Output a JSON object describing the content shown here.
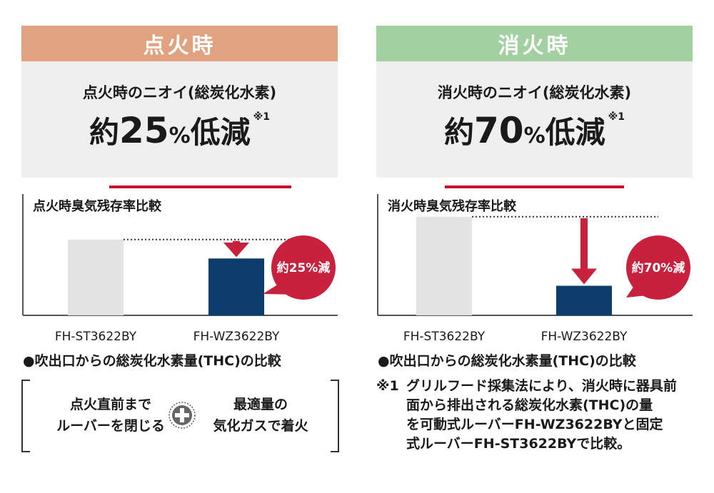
{
  "left": {
    "header": "点火時",
    "summary": {
      "title": "点火時のニオイ(総炭化水素)",
      "prefix": "約",
      "number": "25",
      "percent": "%",
      "suffix": "低減",
      "note": "※1"
    },
    "chart_title": "点火時臭気残存率比較",
    "badge": "約25%減",
    "caption": "●吹出口からの総炭化水素量(THC)の比較"
  },
  "right": {
    "header": "消火時",
    "summary": {
      "title": "消火時のニオイ(総炭化水素)",
      "prefix": "約",
      "number": "70",
      "percent": "%",
      "suffix": "低減",
      "note": "※1"
    },
    "chart_title": "消火時臭気残存率比較",
    "badge": "約70%減",
    "caption": "●吹出口からの総炭化水素量(THC)の比較"
  },
  "method": {
    "step1": [
      "点火直前まで",
      "ルーバーを閉じる"
    ],
    "step2": [
      "最適量の",
      "気化ガスで着火"
    ],
    "plus_icon": "plus-icon"
  },
  "footnote": {
    "mark": "※1",
    "lines": [
      "グリルフード採集法により、消火時に器具前",
      "面から排出される総炭化水素(THC)の量",
      "を可動式ルーバーFH-WZ3622BYと固定",
      "式ルーバーFH-ST3622BYで比較。"
    ]
  },
  "colors": {
    "ignition_header": "#e0a27f",
    "extinction_header": "#a3d0a0",
    "summary_bg": "#efefef",
    "accent_red": "#c8102e",
    "fixed_bar": "#e3e3e3",
    "movable_bar": "#0d3d6b",
    "badge_red": "#c8213e"
  },
  "chart_data": [
    {
      "type": "bar",
      "title": "点火時臭気残存率比較",
      "categories": [
        "FH-ST3622BY",
        "FH-WZ3622BY"
      ],
      "values": [
        100,
        75
      ],
      "ylim": [
        0,
        160
      ],
      "grid": false,
      "annotation": "約25%減"
    },
    {
      "type": "bar",
      "title": "消火時臭気残存率比較",
      "categories": [
        "FH-ST3622BY",
        "FH-WZ3622BY"
      ],
      "values": [
        100,
        30
      ],
      "ylim": [
        0,
        123
      ],
      "grid": false,
      "annotation": "約70%減"
    }
  ]
}
